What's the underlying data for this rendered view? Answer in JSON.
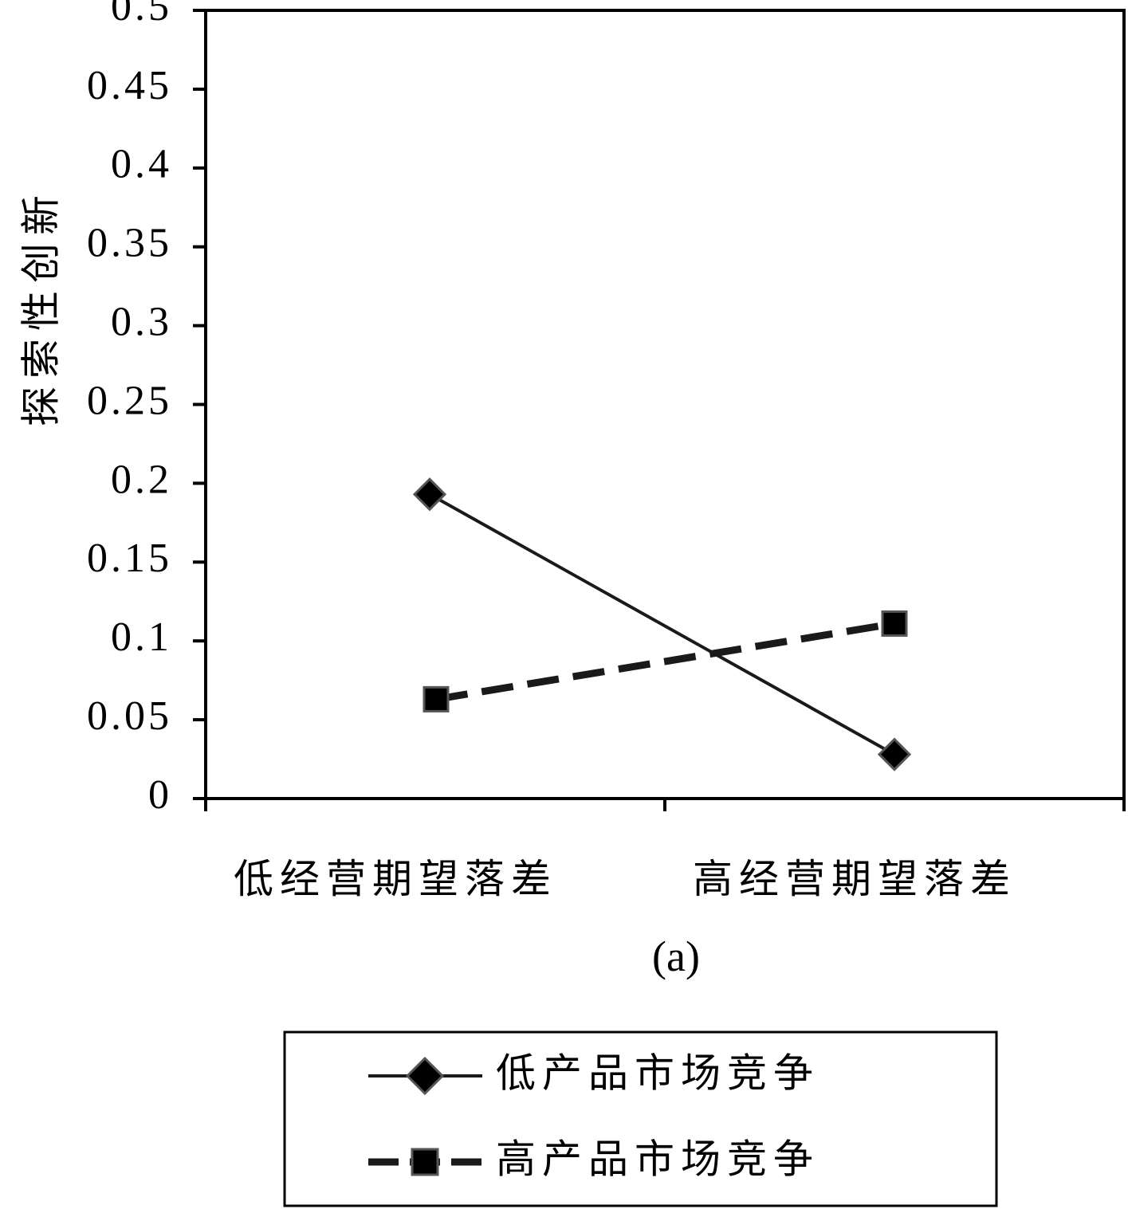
{
  "chart_data": {
    "type": "line",
    "categories": [
      "低经营期望落差",
      "高经营期望落差"
    ],
    "series": [
      {
        "name": "低产品市场竞争",
        "values": [
          0.193,
          0.028
        ],
        "marker": "diamond",
        "line_style": "solid"
      },
      {
        "name": "高产品市场竞争",
        "values": [
          0.063,
          0.111
        ],
        "marker": "square",
        "line_style": "dashed"
      }
    ],
    "ylabel": "探索性创新",
    "xlabel": "",
    "ylim": [
      0,
      0.5
    ],
    "yticks": [
      "0",
      "0.05",
      "0.1",
      "0.15",
      "0.2",
      "0.25",
      "0.3",
      "0.35",
      "0.4",
      "0.45",
      "0.5"
    ],
    "ytick_values": [
      0,
      0.05,
      0.1,
      0.15,
      0.2,
      0.25,
      0.3,
      0.35,
      0.4,
      0.45,
      0.5
    ],
    "caption": "(a)",
    "grid": false,
    "legend_position": "bottom",
    "colors": {
      "line": "#1a1a1a",
      "axis": "#000000",
      "background": "#ffffff"
    }
  }
}
